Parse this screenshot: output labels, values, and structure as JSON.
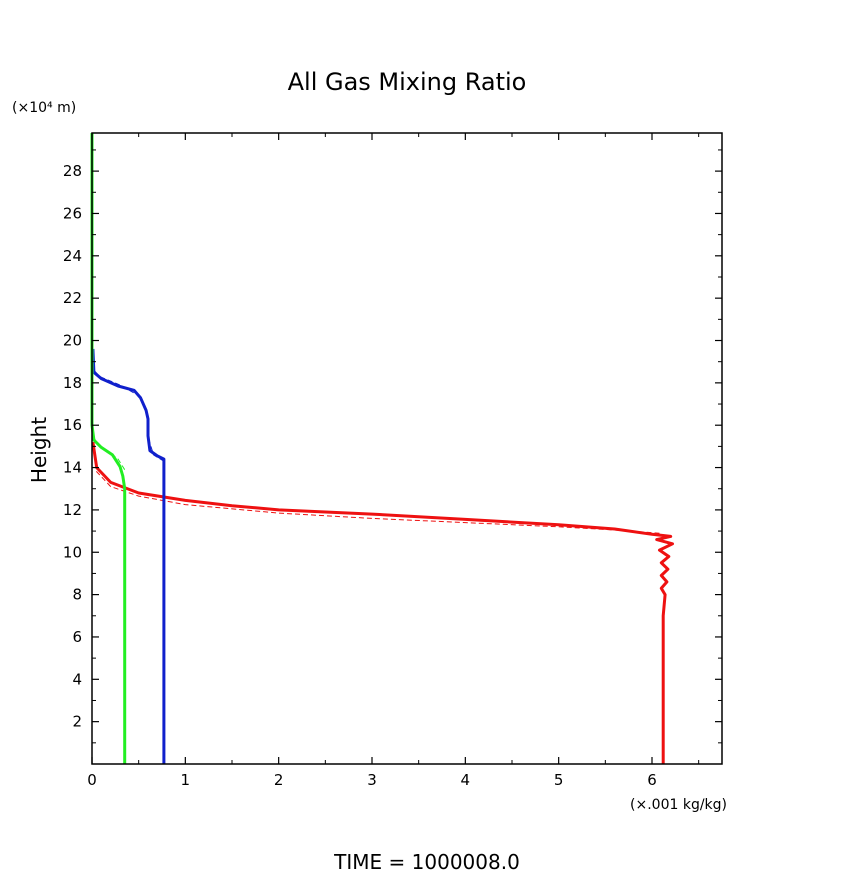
{
  "chart_data": {
    "type": "line",
    "title": "All Gas Mixing Ratio",
    "ylabel": "Height",
    "yunit_label": "(×10⁴ m)",
    "xunit_label": "(×.001 kg/kg)",
    "footer": "TIME =  1000008.0",
    "xlim": [
      0,
      6.75
    ],
    "ylim": [
      0,
      29.8
    ],
    "xticks": [
      0,
      1,
      2,
      3,
      4,
      5,
      6
    ],
    "xtick_labels": [
      "0",
      "1",
      "2",
      "3",
      "4",
      "5",
      "6"
    ],
    "yticks": [
      2,
      4,
      6,
      8,
      10,
      12,
      14,
      16,
      18,
      20,
      22,
      24,
      26,
      28
    ],
    "ytick_labels": [
      "2",
      "4",
      "6",
      "8",
      "10",
      "12",
      "14",
      "16",
      "18",
      "20",
      "22",
      "24",
      "26",
      "28"
    ],
    "grid": false,
    "series": [
      {
        "color": "#ee1111",
        "style": "solid",
        "points": [
          [
            6.12,
            0
          ],
          [
            6.12,
            4
          ],
          [
            6.12,
            7
          ],
          [
            6.14,
            8
          ],
          [
            6.1,
            8.3
          ],
          [
            6.16,
            8.6
          ],
          [
            6.1,
            8.9
          ],
          [
            6.17,
            9.2
          ],
          [
            6.1,
            9.5
          ],
          [
            6.18,
            9.8
          ],
          [
            6.08,
            10.1
          ],
          [
            6.22,
            10.4
          ],
          [
            6.05,
            10.6
          ],
          [
            6.2,
            10.75
          ],
          [
            6.0,
            10.85
          ],
          [
            5.6,
            11.1
          ],
          [
            5.0,
            11.3
          ],
          [
            4.0,
            11.55
          ],
          [
            3.0,
            11.8
          ],
          [
            2.0,
            12.0
          ],
          [
            1.5,
            12.2
          ],
          [
            1.0,
            12.45
          ],
          [
            0.5,
            12.8
          ],
          [
            0.2,
            13.3
          ],
          [
            0.05,
            14.0
          ],
          [
            0.01,
            15.2
          ]
        ]
      },
      {
        "color": "#ee1111",
        "style": "dashed",
        "points": [
          [
            6.08,
            10.9
          ],
          [
            5.6,
            11.05
          ],
          [
            5.0,
            11.2
          ],
          [
            4.0,
            11.4
          ],
          [
            3.0,
            11.6
          ],
          [
            2.0,
            11.85
          ],
          [
            1.0,
            12.25
          ],
          [
            0.5,
            12.65
          ],
          [
            0.2,
            13.1
          ],
          [
            0.03,
            13.9
          ]
        ]
      },
      {
        "color": "#1020cc",
        "style": "solid",
        "points": [
          [
            0.77,
            0
          ],
          [
            0.77,
            12
          ],
          [
            0.77,
            14.4
          ],
          [
            0.7,
            14.55
          ],
          [
            0.62,
            14.8
          ],
          [
            0.6,
            15.5
          ],
          [
            0.6,
            16.3
          ],
          [
            0.58,
            16.7
          ],
          [
            0.52,
            17.3
          ],
          [
            0.45,
            17.65
          ],
          [
            0.28,
            17.85
          ],
          [
            0.1,
            18.2
          ],
          [
            0.02,
            18.5
          ],
          [
            0.01,
            19.6
          ]
        ]
      },
      {
        "color": "#1020cc",
        "style": "dashed",
        "points": [
          [
            0.77,
            14.3
          ],
          [
            0.66,
            14.6
          ],
          [
            0.61,
            15.3
          ],
          [
            0.6,
            16.5
          ],
          [
            0.5,
            17.4
          ],
          [
            0.3,
            17.9
          ],
          [
            0.08,
            18.3
          ],
          [
            0.02,
            18.6
          ]
        ]
      },
      {
        "color": "#22ee22",
        "style": "solid",
        "points": [
          [
            0.35,
            0
          ],
          [
            0.35,
            13
          ],
          [
            0.33,
            13.6
          ],
          [
            0.3,
            14.05
          ],
          [
            0.22,
            14.6
          ],
          [
            0.1,
            14.95
          ],
          [
            0.02,
            15.3
          ],
          [
            0,
            16
          ],
          [
            0,
            29.8
          ]
        ]
      },
      {
        "color": "#22ee22",
        "style": "dashed",
        "points": [
          [
            0.35,
            13.9
          ],
          [
            0.28,
            14.4
          ],
          [
            0.18,
            14.75
          ],
          [
            0.06,
            15.1
          ],
          [
            0.01,
            15.5
          ]
        ]
      }
    ]
  }
}
